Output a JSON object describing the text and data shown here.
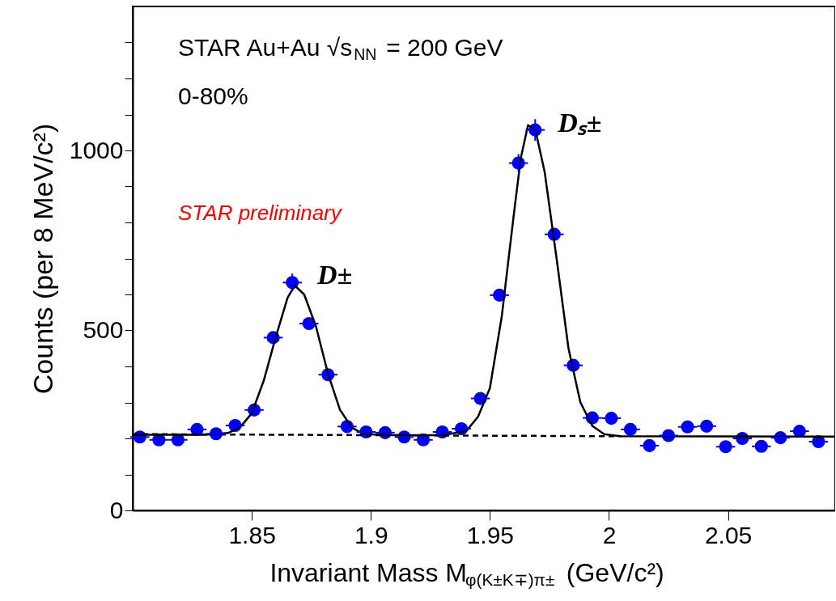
{
  "chart_data": {
    "type": "scatter",
    "xlabel": "Invariant Mass M$_{φ(K±K∓)π±}$ (GeV/c²)",
    "ylabel": "Counts (per 8 MeV/c²)",
    "xlim": [
      1.8,
      2.095
    ],
    "xticks": [
      1.85,
      1.9,
      1.95,
      2,
      2.05
    ],
    "ylim": [
      0,
      1400
    ],
    "yticks": [
      0,
      {
        "value": 100,
        "label": null
      },
      {
        "value": 200,
        "label": null
      },
      {
        "value": 300,
        "label": null
      },
      {
        "value": 400,
        "label": null
      },
      500,
      {
        "value": 600,
        "label": null
      },
      {
        "value": 700,
        "label": null
      },
      {
        "value": 800,
        "label": null
      },
      {
        "value": 900,
        "label": null
      },
      1000,
      {
        "value": 1100,
        "label": null
      },
      {
        "value": 1200,
        "label": null
      },
      {
        "value": 1300,
        "label": null
      }
    ],
    "grid": false,
    "marker": "circle",
    "series": [
      {
        "color": "#0000ff",
        "x": [
          1.803,
          1.811,
          1.819,
          1.827,
          1.835,
          1.843,
          1.851,
          1.859,
          1.867,
          1.874,
          1.882,
          1.89,
          1.898,
          1.906,
          1.914,
          1.922,
          1.93,
          1.938,
          1.946,
          1.954,
          1.962,
          1.969,
          1.977,
          1.985,
          1.993,
          2.001,
          2.009,
          2.017,
          2.025,
          2.033,
          2.041,
          2.049,
          2.056,
          2.064,
          2.072,
          2.08,
          2.088
        ],
        "values": [
          204,
          196,
          196,
          225,
          213,
          236,
          279,
          480,
          633,
          519,
          377,
          233,
          218,
          216,
          204,
          196,
          218,
          227,
          311,
          598,
          965,
          1057,
          767,
          403,
          257,
          256,
          225,
          180,
          208,
          232,
          234,
          177,
          200,
          178,
          202,
          220,
          191
        ],
        "errors": [
          null,
          null,
          null,
          null,
          null,
          null,
          null,
          null,
          25,
          null,
          null,
          null,
          null,
          null,
          null,
          null,
          null,
          null,
          null,
          null,
          25,
          30,
          null,
          null,
          null,
          null,
          null,
          null,
          null,
          null,
          null,
          null,
          null,
          null,
          null,
          null,
          null
        ],
        "xerrors": [
          0.004,
          0.004,
          0.004,
          0.004,
          0.004,
          0.004,
          0.004,
          0.004,
          0.004,
          0.004,
          0.004,
          0.004,
          0.004,
          0.004,
          0.004,
          0.004,
          0.004,
          0.004,
          0.004,
          0.004,
          0.004,
          0.004,
          0.004,
          0.004,
          0.004,
          0.004,
          0.004,
          0.004,
          0.004,
          0.004,
          0.004,
          0.004,
          0.004,
          0.004,
          0.004,
          0.004,
          0.004
        ]
      },
      {
        "type": "line",
        "color": "#000000",
        "line_style": "solid",
        "marker": "none",
        "x": [
          1.8,
          1.83,
          1.84,
          1.845,
          1.85,
          1.855,
          1.86,
          1.865,
          1.868,
          1.872,
          1.877,
          1.882,
          1.887,
          1.892,
          1.897,
          1.91,
          1.93,
          1.94,
          1.945,
          1.95,
          1.955,
          1.96,
          1.963,
          1.966,
          1.969,
          1.973,
          1.978,
          1.983,
          1.988,
          1.993,
          1.998,
          2.005,
          2.095
        ],
        "values": [
          210,
          210,
          215,
          230,
          270,
          360,
          480,
          590,
          625,
          600,
          510,
          380,
          280,
          230,
          212,
          209,
          209,
          220,
          260,
          340,
          540,
          820,
          980,
          1070,
          1060,
          940,
          700,
          450,
          300,
          235,
          212,
          206,
          205
        ]
      },
      {
        "type": "line",
        "color": "#000000",
        "line_style": "dashed",
        "marker": "none",
        "x": [
          1.8,
          2.005
        ],
        "values": [
          212,
          206
        ]
      }
    ],
    "annotations": [
      "STAR Au+Au √s$_{NN}$ = 200 GeV",
      "0-80%",
      "STAR preliminary",
      {
        "text": "D±",
        "x": 1.868,
        "y": 633
      },
      {
        "text": "Dₛ±",
        "x": 1.969,
        "y": 1057
      }
    ]
  }
}
